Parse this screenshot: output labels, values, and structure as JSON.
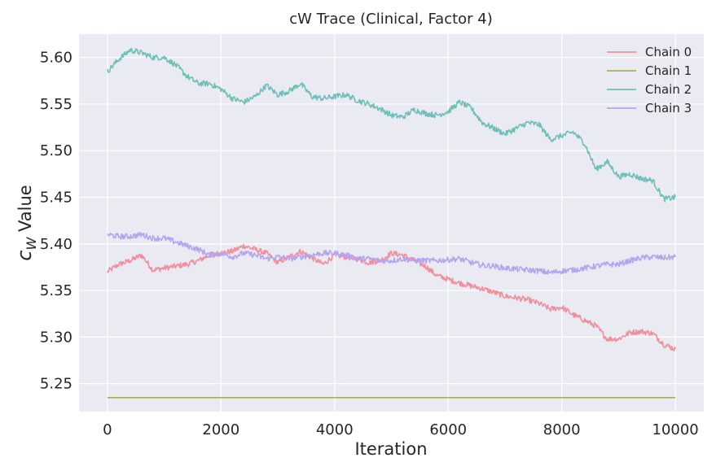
{
  "chart_data": {
    "type": "line",
    "title": "cW Trace (Clinical, Factor 4)",
    "xlabel": "Iteration",
    "ylabel_main": "c",
    "ylabel_sub": "W",
    "ylabel_rest": " Value",
    "xlim": [
      -500,
      10500
    ],
    "ylim": [
      5.22,
      5.625
    ],
    "xticks": [
      0,
      2000,
      4000,
      6000,
      8000,
      10000
    ],
    "xtick_labels": [
      "0",
      "2000",
      "4000",
      "6000",
      "8000",
      "10000"
    ],
    "yticks": [
      5.25,
      5.3,
      5.35,
      5.4,
      5.45,
      5.5,
      5.55,
      5.6
    ],
    "ytick_labels": [
      "5.25",
      "5.30",
      "5.35",
      "5.40",
      "5.45",
      "5.50",
      "5.55",
      "5.60"
    ],
    "grid": true,
    "legend_position": "top-right",
    "series": [
      {
        "name": "Chain 0",
        "color": "#f28e9b",
        "x": [
          0,
          200,
          400,
          600,
          800,
          1000,
          1200,
          1400,
          1600,
          1800,
          2000,
          2200,
          2400,
          2600,
          2800,
          3000,
          3200,
          3400,
          3600,
          3800,
          4000,
          4200,
          4400,
          4600,
          4800,
          5000,
          5200,
          5400,
          5600,
          5800,
          6000,
          6200,
          6400,
          6600,
          6800,
          7000,
          7200,
          7400,
          7600,
          7800,
          8000,
          8200,
          8400,
          8600,
          8800,
          9000,
          9200,
          9400,
          9600,
          9800,
          10000
        ],
        "values": [
          5.37,
          5.378,
          5.382,
          5.388,
          5.372,
          5.374,
          5.376,
          5.378,
          5.382,
          5.388,
          5.39,
          5.392,
          5.398,
          5.394,
          5.39,
          5.38,
          5.386,
          5.392,
          5.385,
          5.378,
          5.388,
          5.386,
          5.384,
          5.38,
          5.382,
          5.39,
          5.388,
          5.382,
          5.376,
          5.366,
          5.362,
          5.358,
          5.355,
          5.352,
          5.348,
          5.344,
          5.342,
          5.34,
          5.336,
          5.33,
          5.332,
          5.324,
          5.318,
          5.312,
          5.298,
          5.298,
          5.305,
          5.306,
          5.304,
          5.292,
          5.287
        ]
      },
      {
        "name": "Chain 1",
        "color": "#a4b05a",
        "x": [
          0,
          10000
        ],
        "values": [
          5.235,
          5.235
        ]
      },
      {
        "name": "Chain 2",
        "color": "#6cc0b8",
        "x": [
          0,
          200,
          400,
          600,
          800,
          1000,
          1200,
          1400,
          1600,
          1800,
          2000,
          2200,
          2400,
          2600,
          2800,
          3000,
          3200,
          3400,
          3600,
          3800,
          4000,
          4200,
          4400,
          4600,
          4800,
          5000,
          5200,
          5400,
          5600,
          5800,
          6000,
          6200,
          6400,
          6600,
          6800,
          7000,
          7200,
          7400,
          7600,
          7800,
          8000,
          8200,
          8400,
          8600,
          8800,
          9000,
          9200,
          9400,
          9600,
          9800,
          10000
        ],
        "values": [
          5.585,
          5.598,
          5.608,
          5.605,
          5.6,
          5.6,
          5.592,
          5.58,
          5.572,
          5.572,
          5.566,
          5.556,
          5.552,
          5.558,
          5.57,
          5.56,
          5.564,
          5.572,
          5.558,
          5.556,
          5.558,
          5.56,
          5.554,
          5.55,
          5.545,
          5.538,
          5.536,
          5.544,
          5.54,
          5.538,
          5.542,
          5.552,
          5.546,
          5.53,
          5.524,
          5.518,
          5.524,
          5.53,
          5.528,
          5.512,
          5.516,
          5.52,
          5.508,
          5.48,
          5.488,
          5.472,
          5.475,
          5.47,
          5.468,
          5.448,
          5.45
        ]
      },
      {
        "name": "Chain 3",
        "color": "#b5a4ee",
        "x": [
          0,
          200,
          400,
          600,
          800,
          1000,
          1200,
          1400,
          1600,
          1800,
          2000,
          2200,
          2400,
          2600,
          2800,
          3000,
          3200,
          3400,
          3600,
          3800,
          4000,
          4200,
          4400,
          4600,
          4800,
          5000,
          5200,
          5400,
          5600,
          5800,
          6000,
          6200,
          6400,
          6600,
          6800,
          7000,
          7200,
          7400,
          7600,
          7800,
          8000,
          8200,
          8400,
          8600,
          8800,
          9000,
          9200,
          9400,
          9600,
          9800,
          10000
        ],
        "values": [
          5.41,
          5.408,
          5.408,
          5.41,
          5.406,
          5.406,
          5.402,
          5.398,
          5.394,
          5.388,
          5.39,
          5.386,
          5.39,
          5.388,
          5.384,
          5.386,
          5.384,
          5.386,
          5.388,
          5.39,
          5.39,
          5.388,
          5.384,
          5.384,
          5.382,
          5.382,
          5.384,
          5.382,
          5.382,
          5.382,
          5.383,
          5.384,
          5.38,
          5.377,
          5.376,
          5.374,
          5.373,
          5.372,
          5.371,
          5.369,
          5.371,
          5.372,
          5.374,
          5.376,
          5.378,
          5.378,
          5.382,
          5.385,
          5.386,
          5.385,
          5.386
        ]
      }
    ]
  }
}
